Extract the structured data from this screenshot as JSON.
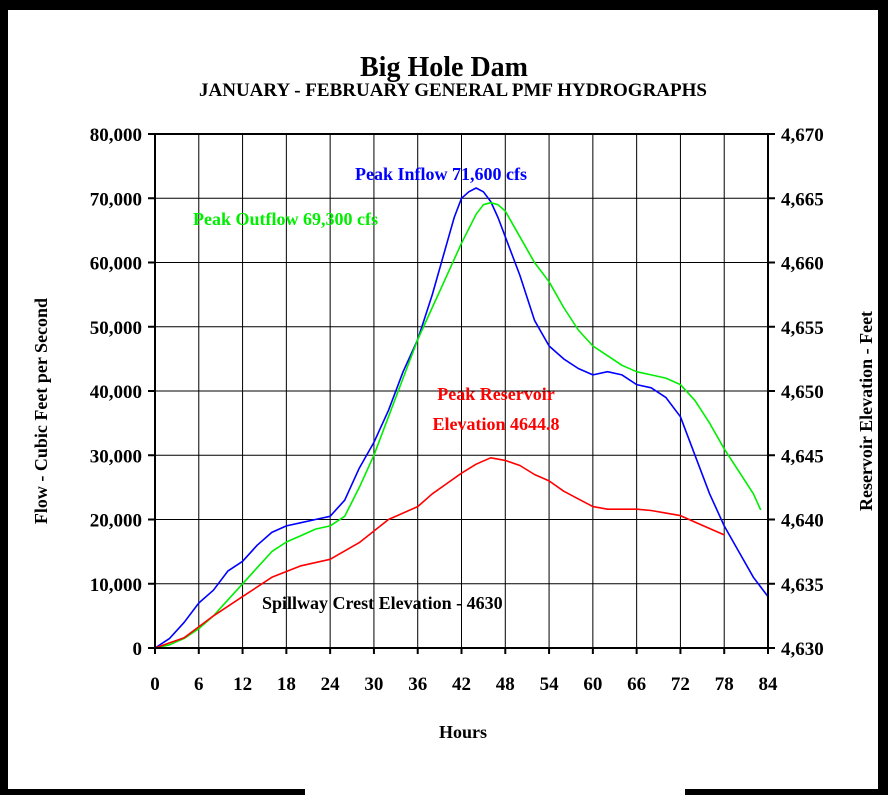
{
  "chart_data": {
    "type": "line",
    "title": "Big Hole Dam",
    "subtitle": "JANUARY - FEBRUARY GENERAL PMF HYDROGRAPHS",
    "xlabel": "Hours",
    "ylabel": "Flow - Cubic Feet per Second",
    "y2label": "Reservoir Elevation - Feet",
    "xlim": [
      0,
      84
    ],
    "ylim": [
      0,
      80000
    ],
    "y2lim": [
      4630,
      4670
    ],
    "grid": true,
    "x_ticks": [
      "0",
      "6",
      "12",
      "18",
      "24",
      "30",
      "36",
      "42",
      "48",
      "54",
      "60",
      "66",
      "72",
      "78",
      "84"
    ],
    "y_ticks": [
      "0",
      "10,000",
      "20,000",
      "30,000",
      "40,000",
      "50,000",
      "60,000",
      "70,000",
      "80,000"
    ],
    "y2_ticks": [
      "4,630",
      "4,635",
      "4,640",
      "4,645",
      "4,650",
      "4,655",
      "4,660",
      "4,665",
      "4,670"
    ],
    "colors": {
      "inflow": "#0000ff",
      "outflow": "#00ee00",
      "reservoir": "#ff0000",
      "text": "#000000"
    },
    "series": [
      {
        "key": "inflow",
        "axis": "left",
        "x": [
          0,
          2,
          4,
          6,
          8,
          10,
          12,
          14,
          16,
          18,
          20,
          22,
          24,
          26,
          28,
          30,
          32,
          34,
          36,
          38,
          40,
          41,
          42,
          43,
          44,
          45,
          46,
          47,
          48,
          50,
          52,
          54,
          56,
          58,
          60,
          62,
          64,
          66,
          68,
          70,
          72,
          74,
          76,
          78,
          80,
          82,
          84
        ],
        "values": [
          0,
          1500,
          4000,
          7000,
          9000,
          12000,
          13500,
          16000,
          18000,
          19000,
          19500,
          20000,
          20500,
          23000,
          28000,
          32000,
          37000,
          43000,
          48000,
          55000,
          63000,
          67000,
          70000,
          71000,
          71600,
          71000,
          69500,
          67000,
          64000,
          58000,
          51000,
          47000,
          45000,
          43500,
          42500,
          43000,
          42500,
          41000,
          40500,
          39000,
          36000,
          30000,
          24000,
          19000,
          15000,
          11000,
          8000
        ]
      },
      {
        "key": "outflow",
        "axis": "left",
        "x": [
          0,
          2,
          4,
          6,
          8,
          10,
          12,
          14,
          16,
          18,
          20,
          22,
          24,
          26,
          28,
          30,
          32,
          34,
          36,
          38,
          40,
          42,
          44,
          45,
          46,
          47,
          48,
          50,
          52,
          54,
          56,
          58,
          60,
          62,
          64,
          66,
          68,
          70,
          72,
          74,
          76,
          78,
          80,
          82,
          83
        ],
        "values": [
          0,
          500,
          1500,
          3000,
          5000,
          7500,
          10000,
          12500,
          15000,
          16500,
          17500,
          18500,
          19000,
          20500,
          25000,
          30000,
          36000,
          42000,
          48000,
          53000,
          58000,
          63000,
          67500,
          69000,
          69300,
          69000,
          68000,
          64000,
          60000,
          57000,
          53000,
          49500,
          47000,
          45500,
          44000,
          43000,
          42500,
          42000,
          41000,
          38500,
          35000,
          31000,
          27500,
          24000,
          21500
        ]
      },
      {
        "key": "reservoir",
        "axis": "right",
        "x": [
          0,
          4,
          8,
          12,
          16,
          20,
          24,
          28,
          32,
          36,
          38,
          40,
          42,
          44,
          46,
          48,
          50,
          52,
          54,
          56,
          58,
          60,
          62,
          64,
          66,
          68,
          70,
          72,
          74,
          76,
          78
        ],
        "values": [
          4630,
          4630.8,
          4632.5,
          4634.0,
          4635.5,
          4636.4,
          4636.9,
          4638.2,
          4640.0,
          4641.0,
          4642.0,
          4642.8,
          4643.6,
          4644.3,
          4644.8,
          4644.6,
          4644.2,
          4643.5,
          4643.0,
          4642.2,
          4641.6,
          4641.0,
          4640.8,
          4640.8,
          4640.8,
          4640.7,
          4640.5,
          4640.3,
          4639.8,
          4639.3,
          4638.8
        ]
      }
    ],
    "annotations": {
      "peak_inflow": "Peak Inflow 71,600 cfs",
      "peak_outflow": "Peak Outflow 69,300 cfs",
      "peak_res_line1": "Peak Reservoir",
      "peak_res_line2": "Elevation 4644.8",
      "spillway": "Spillway Crest Elevation - 4630"
    }
  }
}
